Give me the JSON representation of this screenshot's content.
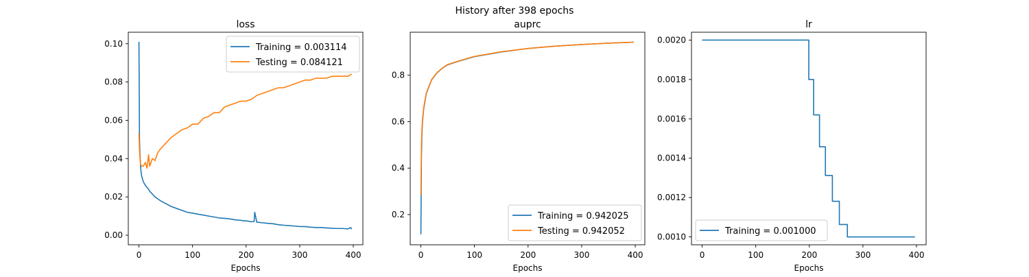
{
  "figure": {
    "suptitle": "History after 398 epochs"
  },
  "colors": {
    "training": "#1f77b4",
    "testing": "#ff7f0e",
    "axes": "#000000",
    "legend_border": "#cccccc"
  },
  "chart_data": [
    {
      "type": "line",
      "title": "loss",
      "xlabel": "Epochs",
      "ylabel": "",
      "xlim": [
        -19.9,
        417.9
      ],
      "ylim": [
        -0.005,
        0.106
      ],
      "xticks": [
        0,
        100,
        200,
        300,
        400
      ],
      "xtick_labels": [
        "0",
        "100",
        "200",
        "300",
        "400"
      ],
      "yticks": [
        0.0,
        0.02,
        0.04,
        0.06,
        0.08,
        0.1
      ],
      "ytick_labels": [
        "0.00",
        "0.02",
        "0.04",
        "0.06",
        "0.08",
        "0.10"
      ],
      "legend": {
        "loc": "upper right"
      },
      "series": [
        {
          "name": "Training = 0.003114",
          "color": "#1f77b4",
          "x": [
            0,
            1,
            2,
            3,
            4,
            5,
            6,
            8,
            10,
            12,
            15,
            18,
            20,
            25,
            30,
            35,
            40,
            50,
            60,
            70,
            80,
            90,
            100,
            110,
            120,
            130,
            140,
            150,
            160,
            170,
            180,
            190,
            195,
            200,
            210,
            215,
            216,
            220,
            230,
            240,
            250,
            260,
            270,
            280,
            290,
            300,
            310,
            320,
            330,
            340,
            350,
            360,
            370,
            380,
            390,
            395,
            397
          ],
          "y": [
            0.101,
            0.05,
            0.042,
            0.036,
            0.033,
            0.031,
            0.03,
            0.028,
            0.027,
            0.026,
            0.025,
            0.024,
            0.023,
            0.0215,
            0.02,
            0.019,
            0.018,
            0.0165,
            0.015,
            0.014,
            0.013,
            0.012,
            0.0115,
            0.011,
            0.0105,
            0.01,
            0.0095,
            0.009,
            0.0088,
            0.0085,
            0.008,
            0.0078,
            0.0075,
            0.0075,
            0.007,
            0.0072,
            0.012,
            0.0068,
            0.0065,
            0.0062,
            0.006,
            0.0055,
            0.0052,
            0.005,
            0.0048,
            0.0045,
            0.0045,
            0.0042,
            0.004,
            0.004,
            0.0038,
            0.0036,
            0.0035,
            0.0035,
            0.0033,
            0.004,
            0.003114
          ]
        },
        {
          "name": "Testing = 0.084121",
          "color": "#ff7f0e",
          "x": [
            0,
            1,
            2,
            3,
            5,
            8,
            10,
            12,
            15,
            18,
            20,
            25,
            30,
            35,
            40,
            50,
            60,
            70,
            80,
            90,
            100,
            110,
            120,
            130,
            140,
            150,
            160,
            170,
            180,
            190,
            200,
            210,
            220,
            230,
            240,
            250,
            260,
            270,
            280,
            290,
            300,
            310,
            320,
            330,
            340,
            350,
            360,
            370,
            380,
            390,
            397
          ],
          "y": [
            0.053,
            0.045,
            0.04,
            0.037,
            0.036,
            0.036,
            0.037,
            0.038,
            0.035,
            0.042,
            0.036,
            0.04,
            0.039,
            0.043,
            0.045,
            0.048,
            0.051,
            0.053,
            0.055,
            0.056,
            0.058,
            0.058,
            0.061,
            0.062,
            0.064,
            0.064,
            0.067,
            0.068,
            0.069,
            0.07,
            0.07,
            0.071,
            0.073,
            0.074,
            0.075,
            0.076,
            0.077,
            0.077,
            0.078,
            0.079,
            0.08,
            0.081,
            0.081,
            0.082,
            0.082,
            0.082,
            0.083,
            0.083,
            0.083,
            0.083,
            0.084121
          ]
        }
      ]
    },
    {
      "type": "line",
      "title": "auprc",
      "xlabel": "Epochs",
      "ylabel": "",
      "xlim": [
        -19.9,
        417.9
      ],
      "ylim": [
        0.07,
        0.985
      ],
      "xticks": [
        0,
        100,
        200,
        300,
        400
      ],
      "xtick_labels": [
        "0",
        "100",
        "200",
        "300",
        "400"
      ],
      "yticks": [
        0.2,
        0.4,
        0.6,
        0.8
      ],
      "ytick_labels": [
        "0.2",
        "0.4",
        "0.6",
        "0.8"
      ],
      "legend": {
        "loc": "lower right"
      },
      "series": [
        {
          "name": "Training = 0.942025",
          "color": "#1f77b4",
          "x": [
            0,
            1,
            2,
            3,
            5,
            7,
            10,
            15,
            20,
            30,
            40,
            50,
            70,
            100,
            150,
            200,
            250,
            300,
            350,
            397
          ],
          "y": [
            0.115,
            0.45,
            0.55,
            0.6,
            0.65,
            0.68,
            0.72,
            0.75,
            0.78,
            0.81,
            0.83,
            0.845,
            0.86,
            0.88,
            0.9,
            0.915,
            0.925,
            0.932,
            0.938,
            0.942025
          ]
        },
        {
          "name": "Testing = 0.942052",
          "color": "#ff7f0e",
          "x": [
            0,
            1,
            2,
            3,
            5,
            7,
            10,
            15,
            20,
            30,
            40,
            50,
            70,
            100,
            150,
            200,
            250,
            300,
            350,
            397
          ],
          "y": [
            0.285,
            0.5,
            0.57,
            0.61,
            0.655,
            0.685,
            0.722,
            0.752,
            0.781,
            0.811,
            0.831,
            0.846,
            0.861,
            0.881,
            0.901,
            0.915,
            0.925,
            0.932,
            0.938,
            0.942052
          ]
        }
      ]
    },
    {
      "type": "line",
      "title": "lr",
      "xlabel": "Epochs",
      "ylabel": "",
      "xlim": [
        -19.9,
        417.9
      ],
      "ylim": [
        0.00096,
        0.00204
      ],
      "xticks": [
        0,
        100,
        200,
        300,
        400
      ],
      "xtick_labels": [
        "0",
        "100",
        "200",
        "300",
        "400"
      ],
      "yticks": [
        0.001,
        0.0012,
        0.0014,
        0.0016,
        0.0018,
        0.002
      ],
      "ytick_labels": [
        "0.0010",
        "0.0012",
        "0.0014",
        "0.0016",
        "0.0018",
        "0.0020"
      ],
      "legend": {
        "loc": "lower left"
      },
      "series": [
        {
          "name": "Training = 0.001000",
          "color": "#1f77b4",
          "x": [
            0,
            199,
            199,
            208,
            208,
            219,
            219,
            230,
            230,
            243,
            243,
            256,
            256,
            271,
            271,
            397
          ],
          "y": [
            0.002,
            0.002,
            0.0018,
            0.0018,
            0.00162,
            0.00162,
            0.001458,
            0.001458,
            0.001312,
            0.001312,
            0.001181,
            0.001181,
            0.001063,
            0.001063,
            0.001,
            0.001
          ]
        }
      ]
    }
  ]
}
